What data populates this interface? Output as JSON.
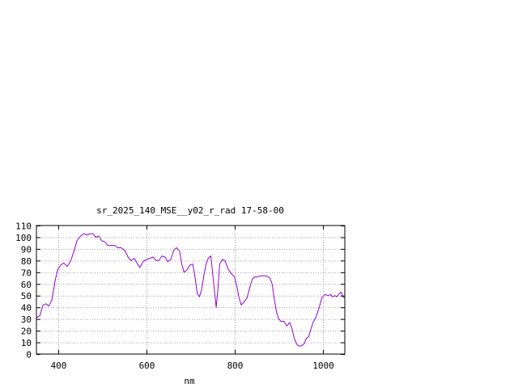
{
  "chart_data": {
    "type": "line",
    "title": "sr_2025_140_MSE__y02_r_rad 17-58-00",
    "xlabel": "nm",
    "ylabel": "",
    "xlim": [
      350,
      1050
    ],
    "ylim": [
      0,
      110
    ],
    "x_ticks": [
      400,
      600,
      800,
      1000
    ],
    "y_ticks": [
      0,
      10,
      20,
      30,
      40,
      50,
      60,
      70,
      80,
      90,
      100,
      110
    ],
    "grid": true,
    "legend": "none",
    "series": [
      {
        "color": "#9400d3",
        "points": [
          [
            350,
            31
          ],
          [
            358,
            33
          ],
          [
            365,
            42
          ],
          [
            372,
            43
          ],
          [
            378,
            41
          ],
          [
            385,
            46
          ],
          [
            392,
            62
          ],
          [
            398,
            72
          ],
          [
            405,
            76
          ],
          [
            412,
            78
          ],
          [
            420,
            75
          ],
          [
            428,
            80
          ],
          [
            435,
            88
          ],
          [
            442,
            97
          ],
          [
            450,
            101
          ],
          [
            458,
            103
          ],
          [
            465,
            102
          ],
          [
            472,
            103
          ],
          [
            478,
            103
          ],
          [
            485,
            100
          ],
          [
            492,
            101
          ],
          [
            498,
            97
          ],
          [
            505,
            96
          ],
          [
            512,
            93
          ],
          [
            520,
            93
          ],
          [
            528,
            93
          ],
          [
            535,
            91
          ],
          [
            542,
            91
          ],
          [
            550,
            89
          ],
          [
            558,
            83
          ],
          [
            565,
            80
          ],
          [
            572,
            82
          ],
          [
            578,
            78
          ],
          [
            585,
            74
          ],
          [
            592,
            79
          ],
          [
            600,
            81
          ],
          [
            608,
            82
          ],
          [
            615,
            83
          ],
          [
            622,
            80
          ],
          [
            628,
            80
          ],
          [
            635,
            84
          ],
          [
            642,
            83
          ],
          [
            648,
            79
          ],
          [
            655,
            81
          ],
          [
            662,
            89
          ],
          [
            668,
            91
          ],
          [
            675,
            88
          ],
          [
            680,
            77
          ],
          [
            685,
            70
          ],
          [
            692,
            72
          ],
          [
            698,
            76
          ],
          [
            705,
            77
          ],
          [
            710,
            66
          ],
          [
            715,
            52
          ],
          [
            720,
            49
          ],
          [
            725,
            55
          ],
          [
            730,
            67
          ],
          [
            735,
            77
          ],
          [
            740,
            82
          ],
          [
            746,
            84
          ],
          [
            752,
            62
          ],
          [
            758,
            40
          ],
          [
            762,
            55
          ],
          [
            766,
            77
          ],
          [
            772,
            81
          ],
          [
            778,
            80
          ],
          [
            785,
            73
          ],
          [
            792,
            69
          ],
          [
            800,
            66
          ],
          [
            805,
            58
          ],
          [
            810,
            48
          ],
          [
            815,
            42
          ],
          [
            820,
            44
          ],
          [
            828,
            48
          ],
          [
            835,
            58
          ],
          [
            840,
            64
          ],
          [
            845,
            66
          ],
          [
            852,
            66
          ],
          [
            858,
            67
          ],
          [
            865,
            67
          ],
          [
            872,
            67
          ],
          [
            880,
            65
          ],
          [
            885,
            60
          ],
          [
            890,
            47
          ],
          [
            895,
            36
          ],
          [
            900,
            30
          ],
          [
            905,
            28
          ],
          [
            912,
            28
          ],
          [
            918,
            24
          ],
          [
            925,
            27
          ],
          [
            930,
            22
          ],
          [
            935,
            14
          ],
          [
            940,
            9
          ],
          [
            945,
            7
          ],
          [
            952,
            7
          ],
          [
            958,
            9
          ],
          [
            962,
            13
          ],
          [
            968,
            15
          ],
          [
            972,
            20
          ],
          [
            978,
            27
          ],
          [
            985,
            32
          ],
          [
            992,
            40
          ],
          [
            998,
            48
          ],
          [
            1005,
            51
          ],
          [
            1012,
            50
          ],
          [
            1018,
            51
          ],
          [
            1022,
            49
          ],
          [
            1028,
            50
          ],
          [
            1032,
            49
          ],
          [
            1038,
            52
          ],
          [
            1042,
            53
          ],
          [
            1046,
            49
          ],
          [
            1050,
            48
          ]
        ]
      }
    ]
  }
}
